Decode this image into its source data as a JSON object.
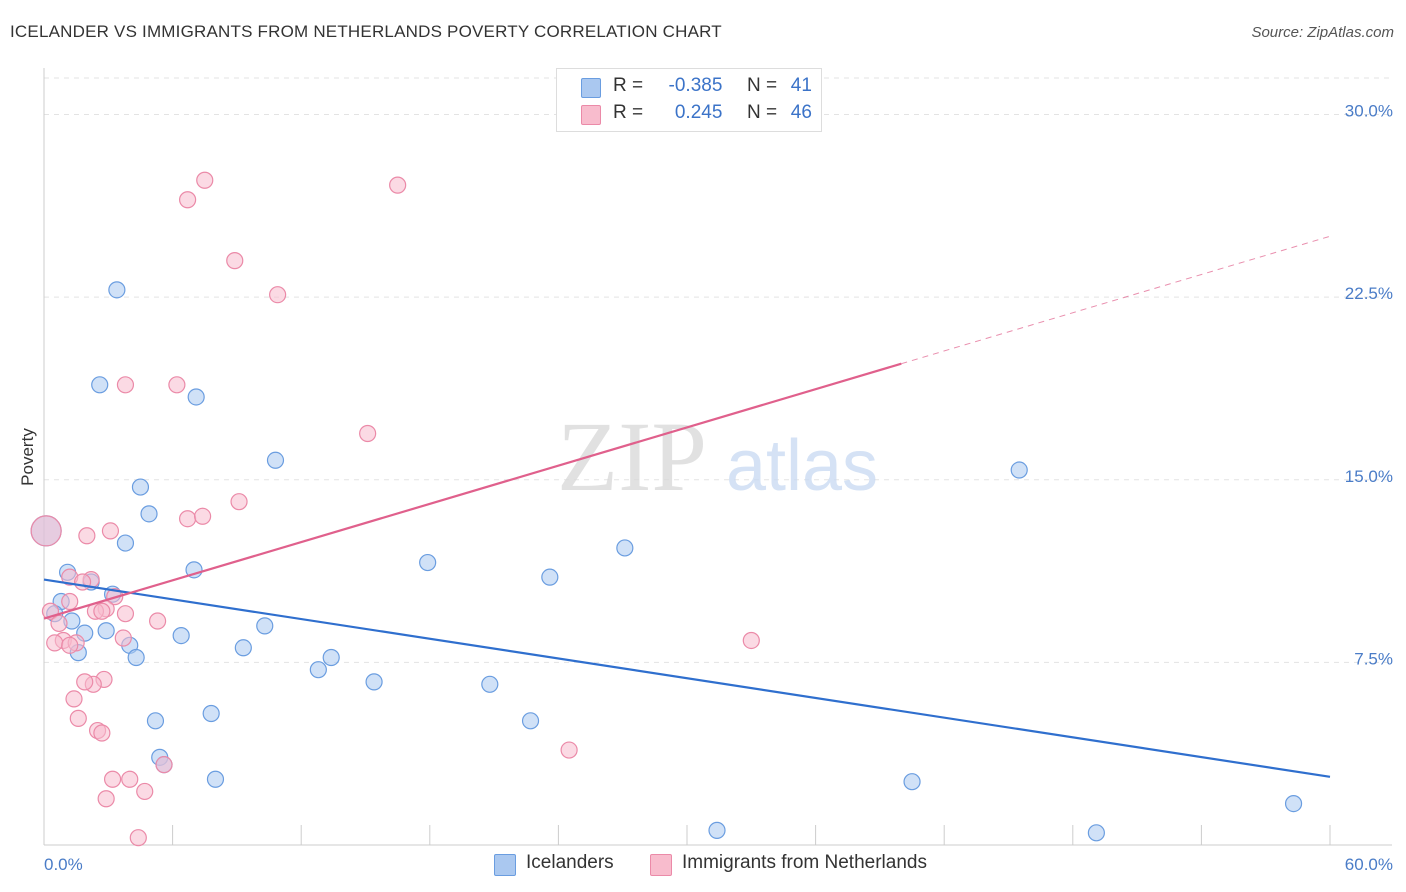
{
  "title": "ICELANDER VS IMMIGRANTS FROM NETHERLANDS POVERTY CORRELATION CHART",
  "source": "Source: ZipAtlas.com",
  "watermark": {
    "zip": "ZIP",
    "atlas": "atlas"
  },
  "legend": {
    "r_label": "R =",
    "n_label": "N =",
    "series": [
      {
        "r": "-0.385",
        "n": "41"
      },
      {
        "r": "0.245",
        "n": "46"
      }
    ]
  },
  "colors": {
    "icelanders_fill": "#aac8f0",
    "icelanders_stroke": "#6a9de0",
    "icelanders_line": "#2f6fce",
    "netherlands_fill": "#f8bccd",
    "netherlands_stroke": "#eb8aa8",
    "netherlands_line": "#e0608c",
    "grid": "#e3e3e3",
    "tick_text": "#4a7cc7"
  },
  "chart_data": {
    "type": "scatter",
    "title": "ICELANDER VS IMMIGRANTS FROM NETHERLANDS POVERTY CORRELATION CHART",
    "xlabel": "",
    "ylabel": "Poverty",
    "xlim": [
      0,
      60
    ],
    "ylim": [
      0,
      31.5
    ],
    "x_tick_labels": [
      "0.0%",
      "60.0%"
    ],
    "y_ticks": [
      7.5,
      15.0,
      22.5,
      30.0
    ],
    "y_tick_labels": [
      "7.5%",
      "15.0%",
      "22.5%",
      "30.0%"
    ],
    "series": [
      {
        "name": "Icelanders",
        "r": -0.385,
        "n": 41,
        "trend": {
          "x0": 0,
          "y0": 10.9,
          "x1": 60,
          "y1": 2.8,
          "solid_until": 60
        },
        "points": [
          [
            3.4,
            22.8
          ],
          [
            2.6,
            18.9
          ],
          [
            7.1,
            18.4
          ],
          [
            10.8,
            15.8
          ],
          [
            45.5,
            15.4
          ],
          [
            4.5,
            14.7
          ],
          [
            4.9,
            13.6
          ],
          [
            0.1,
            12.9
          ],
          [
            3.8,
            12.4
          ],
          [
            27.1,
            12.2
          ],
          [
            17.9,
            11.6
          ],
          [
            1.1,
            11.2
          ],
          [
            7.0,
            11.3
          ],
          [
            23.6,
            11.0
          ],
          [
            2.2,
            10.8
          ],
          [
            3.2,
            10.3
          ],
          [
            0.8,
            10.0
          ],
          [
            0.5,
            9.5
          ],
          [
            1.3,
            9.2
          ],
          [
            10.3,
            9.0
          ],
          [
            1.9,
            8.7
          ],
          [
            2.9,
            8.8
          ],
          [
            6.4,
            8.6
          ],
          [
            4.0,
            8.2
          ],
          [
            9.3,
            8.1
          ],
          [
            1.6,
            7.9
          ],
          [
            4.3,
            7.7
          ],
          [
            13.4,
            7.7
          ],
          [
            12.8,
            7.2
          ],
          [
            15.4,
            6.7
          ],
          [
            20.8,
            6.6
          ],
          [
            7.8,
            5.4
          ],
          [
            5.2,
            5.1
          ],
          [
            22.7,
            5.1
          ],
          [
            5.4,
            3.6
          ],
          [
            5.6,
            3.3
          ],
          [
            8.0,
            2.7
          ],
          [
            40.5,
            2.6
          ],
          [
            58.3,
            1.7
          ],
          [
            31.4,
            0.6
          ],
          [
            49.1,
            0.5
          ]
        ]
      },
      {
        "name": "Immigrants from Netherlands",
        "r": 0.245,
        "n": 46,
        "trend": {
          "x0": 0,
          "y0": 9.3,
          "x1": 60,
          "y1": 25.0,
          "solid_until": 40.0
        },
        "points": [
          [
            7.5,
            27.3
          ],
          [
            16.5,
            27.1
          ],
          [
            6.7,
            26.5
          ],
          [
            8.9,
            24.0
          ],
          [
            10.9,
            22.6
          ],
          [
            3.8,
            18.9
          ],
          [
            6.2,
            18.9
          ],
          [
            15.1,
            16.9
          ],
          [
            9.1,
            14.1
          ],
          [
            6.7,
            13.4
          ],
          [
            7.4,
            13.5
          ],
          [
            0.1,
            12.9
          ],
          [
            3.1,
            12.9
          ],
          [
            2.0,
            12.7
          ],
          [
            1.2,
            11.0
          ],
          [
            2.2,
            10.9
          ],
          [
            1.8,
            10.8
          ],
          [
            3.3,
            10.2
          ],
          [
            1.2,
            10.0
          ],
          [
            2.9,
            9.7
          ],
          [
            0.3,
            9.6
          ],
          [
            2.4,
            9.6
          ],
          [
            2.7,
            9.6
          ],
          [
            3.8,
            9.5
          ],
          [
            5.3,
            9.2
          ],
          [
            0.7,
            9.1
          ],
          [
            0.9,
            8.4
          ],
          [
            3.7,
            8.5
          ],
          [
            33.0,
            8.4
          ],
          [
            0.5,
            8.3
          ],
          [
            1.5,
            8.3
          ],
          [
            1.2,
            8.2
          ],
          [
            2.8,
            6.8
          ],
          [
            2.3,
            6.6
          ],
          [
            1.9,
            6.7
          ],
          [
            1.4,
            6.0
          ],
          [
            1.6,
            5.2
          ],
          [
            2.5,
            4.7
          ],
          [
            2.7,
            4.6
          ],
          [
            24.5,
            3.9
          ],
          [
            3.2,
            2.7
          ],
          [
            4.0,
            2.7
          ],
          [
            4.7,
            2.2
          ],
          [
            2.9,
            1.9
          ],
          [
            5.6,
            3.3
          ],
          [
            4.4,
            0.3
          ]
        ]
      }
    ],
    "bottom_legend": [
      "Icelanders",
      "Immigrants from Netherlands"
    ]
  }
}
